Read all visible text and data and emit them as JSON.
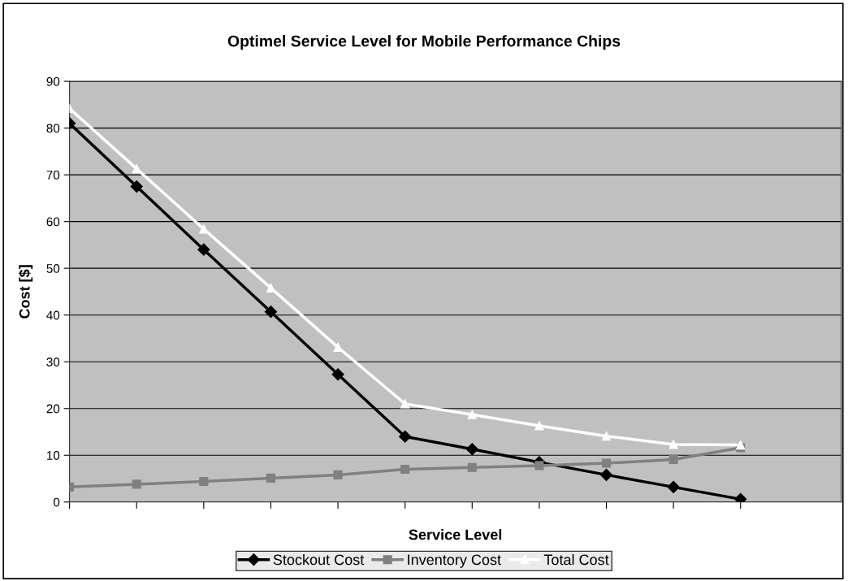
{
  "chart_data": {
    "type": "line",
    "title": "Optimel Service Level for Mobile Performance Chips",
    "xlabel": "Service Level",
    "ylabel": "Cost [$]",
    "categories": [
      null,
      null,
      null,
      null,
      null,
      null,
      null,
      null,
      null,
      null,
      null
    ],
    "ylim": [
      0,
      90
    ],
    "yticks": [
      0,
      10,
      20,
      30,
      40,
      50,
      60,
      70,
      80,
      90
    ],
    "grid": "y",
    "legend": "bottom",
    "tick_labels": "y",
    "series": [
      {
        "name": "Stockout Cost",
        "color": "#000000",
        "marker": "diamond",
        "values": [
          81,
          67.5,
          54,
          40.7,
          27.3,
          14,
          11.3,
          8.5,
          5.8,
          3.2,
          0.6
        ]
      },
      {
        "name": "Inventory Cost",
        "color": "#808080",
        "marker": "square",
        "values": [
          3.2,
          3.8,
          4.4,
          5.1,
          5.8,
          7,
          7.4,
          7.8,
          8.3,
          9.1,
          11.6
        ]
      },
      {
        "name": "Total Cost",
        "color": "#ffffff",
        "marker": "triangle",
        "values": [
          84.2,
          71.3,
          58.4,
          45.8,
          33.1,
          21,
          18.7,
          16.3,
          14.1,
          12.3,
          12.2
        ]
      }
    ]
  }
}
